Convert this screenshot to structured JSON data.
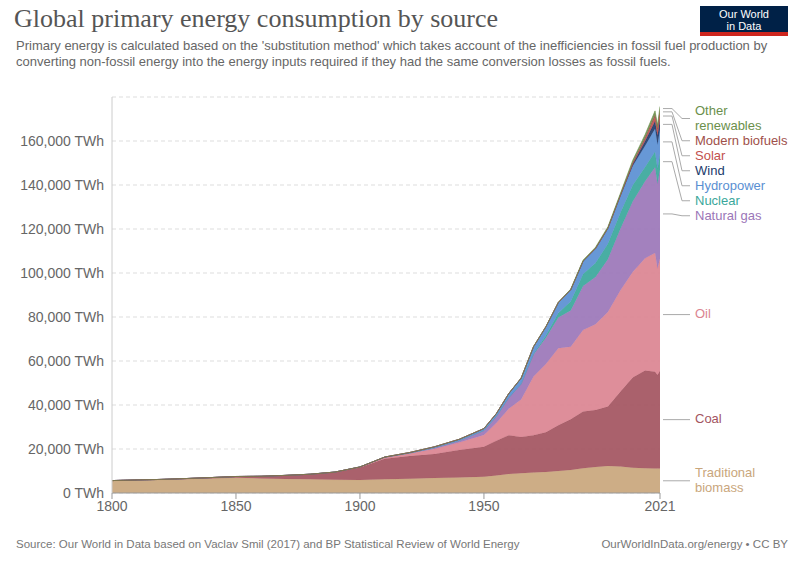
{
  "chart_data": {
    "type": "area",
    "stacked": true,
    "grid": true,
    "title": "Global primary energy consumption by source",
    "subtitle": "Primary energy is calculated based on the 'substitution method' which takes account of the inefficiencies in fossil fuel production by converting non-fossil energy into the energy inputs required if they had the same conversion losses as fossil fuels.",
    "source": "Source: Our World in Data based on Vaclav Smil (2017) and BP Statistical Review of World Energy",
    "credit": "OurWorldInData.org/energy • CC BY",
    "logo": "Our World in Data",
    "x": [
      1800,
      1810,
      1820,
      1830,
      1840,
      1850,
      1860,
      1870,
      1880,
      1890,
      1900,
      1910,
      1920,
      1930,
      1940,
      1950,
      1955,
      1960,
      1965,
      1970,
      1975,
      1980,
      1985,
      1990,
      1995,
      2000,
      2005,
      2010,
      2015,
      2019,
      2020,
      2021
    ],
    "xlim": [
      1800,
      2021
    ],
    "xticks": [
      1800,
      1850,
      1900,
      1950,
      2021
    ],
    "ylim": [
      0,
      180000
    ],
    "yticks": [
      {
        "value": 0,
        "label": "0 TWh"
      },
      {
        "value": 20000,
        "label": "20,000 TWh"
      },
      {
        "value": 40000,
        "label": "40,000 TWh"
      },
      {
        "value": 60000,
        "label": "60,000 TWh"
      },
      {
        "value": 80000,
        "label": "80,000 TWh"
      },
      {
        "value": 100000,
        "label": "100,000 TWh"
      },
      {
        "value": 120000,
        "label": "120,000 TWh"
      },
      {
        "value": 140000,
        "label": "140,000 TWh"
      },
      {
        "value": 160000,
        "label": "160,000 TWh"
      }
    ],
    "series": [
      {
        "name": "Traditional biomass",
        "color": "#c9a67c",
        "values": [
          5556,
          5800,
          6000,
          6300,
          6600,
          6900,
          6600,
          6400,
          6200,
          6000,
          5900,
          6200,
          6500,
          6800,
          7100,
          7400,
          8000,
          8600,
          9000,
          9300,
          9600,
          10000,
          10500,
          11200,
          11800,
          12300,
          12000,
          11500,
          11200,
          11100,
          11100,
          11100
        ]
      },
      {
        "name": "Coal",
        "color": "#a3545f",
        "values": [
          97,
          130,
          180,
          280,
          420,
          600,
          1000,
          1600,
          2300,
          3400,
          5700,
          9400,
          10300,
          10900,
          12500,
          13600,
          15800,
          17700,
          16500,
          17000,
          18000,
          20800,
          23000,
          25900,
          25900,
          27000,
          34000,
          41000,
          44500,
          44000,
          42500,
          44500
        ]
      },
      {
        "name": "Oil",
        "color": "#db8491",
        "values": [
          0,
          0,
          0,
          0,
          0,
          0,
          0,
          10,
          50,
          100,
          180,
          500,
          1100,
          2300,
          3300,
          5400,
          8000,
          12000,
          17000,
          26700,
          31000,
          35000,
          33000,
          37000,
          39000,
          43000,
          46000,
          48000,
          51000,
          54000,
          48500,
          51000
        ]
      },
      {
        "name": "Natural gas",
        "color": "#9b76b8",
        "values": [
          0,
          0,
          0,
          0,
          0,
          0,
          0,
          0,
          0,
          40,
          60,
          150,
          250,
          600,
          900,
          2000,
          3000,
          5000,
          7000,
          10000,
          12000,
          14000,
          16500,
          20000,
          21500,
          24000,
          28000,
          32000,
          35000,
          39000,
          38500,
          40500
        ]
      },
      {
        "name": "Nuclear",
        "color": "#3aa79b",
        "values": [
          0,
          0,
          0,
          0,
          0,
          0,
          0,
          0,
          0,
          0,
          0,
          0,
          0,
          0,
          0,
          0,
          0,
          10,
          100,
          220,
          1000,
          2000,
          4000,
          5500,
          6300,
          7000,
          7300,
          7400,
          6500,
          7000,
          6800,
          7000
        ]
      },
      {
        "name": "Hydropower",
        "color": "#5a8fd2",
        "values": [
          0,
          0,
          0,
          0,
          0,
          0,
          0,
          0,
          0,
          0,
          0,
          100,
          250,
          400,
          600,
          900,
          1300,
          1900,
          2600,
          3300,
          4000,
          4800,
          5400,
          5800,
          6600,
          7000,
          7600,
          8700,
          9600,
          10500,
          11000,
          11000
        ]
      },
      {
        "name": "Wind",
        "color": "#213b6b",
        "values": [
          0,
          0,
          0,
          0,
          0,
          0,
          0,
          0,
          0,
          0,
          0,
          0,
          0,
          0,
          0,
          0,
          0,
          0,
          0,
          0,
          0,
          0,
          0,
          0,
          10,
          80,
          250,
          900,
          2200,
          3500,
          4000,
          4900
        ]
      },
      {
        "name": "Solar",
        "color": "#c2504d",
        "values": [
          0,
          0,
          0,
          0,
          0,
          0,
          0,
          0,
          0,
          0,
          0,
          0,
          0,
          0,
          0,
          0,
          0,
          0,
          0,
          0,
          0,
          0,
          0,
          0,
          0,
          0,
          10,
          80,
          650,
          1800,
          2100,
          2700
        ]
      },
      {
        "name": "Modern biofuels",
        "color": "#a0504a",
        "values": [
          0,
          0,
          0,
          0,
          0,
          0,
          0,
          0,
          0,
          0,
          0,
          0,
          0,
          0,
          0,
          0,
          0,
          0,
          0,
          0,
          0,
          0,
          0,
          100,
          110,
          110,
          220,
          650,
          900,
          1100,
          1000,
          1100
        ]
      },
      {
        "name": "Other renewables",
        "color": "#6b8f4c",
        "values": [
          0,
          0,
          0,
          0,
          0,
          0,
          0,
          0,
          0,
          0,
          0,
          0,
          0,
          0,
          0,
          0,
          0,
          0,
          60,
          80,
          110,
          150,
          280,
          400,
          480,
          550,
          700,
          1000,
          1400,
          1700,
          1800,
          1900
        ]
      }
    ]
  }
}
